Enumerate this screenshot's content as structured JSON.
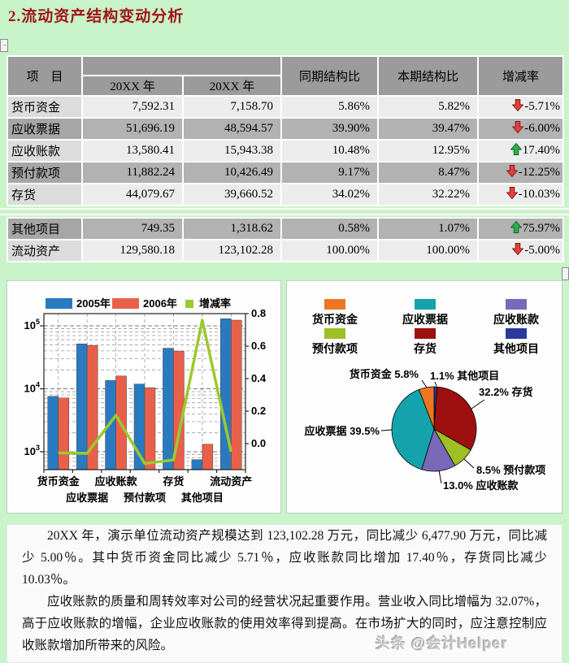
{
  "page": {
    "title": "2.流动资产结构变动分析",
    "background": "#c9f3c9"
  },
  "table": {
    "headers": {
      "item": "项　目",
      "year_prev": "20XX 年",
      "year_curr": "20XX 年",
      "prior_ratio": "同期结构比",
      "current_ratio": "本期结构比",
      "change_rate": "增减率"
    },
    "main_rows": 5,
    "rows": [
      {
        "name": "货币资金",
        "prev": "7,592.31",
        "curr": "7,158.70",
        "prior_pct": "5.86%",
        "curr_pct": "5.82%",
        "change": "-5.71%",
        "trend": "down"
      },
      {
        "name": "应收票据",
        "prev": "51,696.19",
        "curr": "48,594.57",
        "prior_pct": "39.90%",
        "curr_pct": "39.47%",
        "change": "-6.00%",
        "trend": "down"
      },
      {
        "name": "应收账款",
        "prev": "13,580.41",
        "curr": "15,943.38",
        "prior_pct": "10.48%",
        "curr_pct": "12.95%",
        "change": "17.40%",
        "trend": "up"
      },
      {
        "name": "预付款项",
        "prev": "11,882.24",
        "curr": "10,426.49",
        "prior_pct": "9.17%",
        "curr_pct": "8.47%",
        "change": "-12.25%",
        "trend": "down"
      },
      {
        "name": "存货",
        "prev": "44,079.67",
        "curr": "39,660.52",
        "prior_pct": "34.02%",
        "curr_pct": "32.22%",
        "change": "-10.03%",
        "trend": "down"
      },
      {
        "name": "其他项目",
        "prev": "749.35",
        "curr": "1,318.62",
        "prior_pct": "0.58%",
        "curr_pct": "1.07%",
        "change": "75.97%",
        "trend": "up"
      },
      {
        "name": "流动资产",
        "prev": "129,580.18",
        "curr": "123,102.28",
        "prior_pct": "100.00%",
        "curr_pct": "100.00%",
        "change": "-5.00%",
        "trend": "down"
      }
    ]
  },
  "chart_data": [
    {
      "type": "bar",
      "categories": [
        "货币资金",
        "应收票据",
        "应收账款",
        "预付款项",
        "存货",
        "其他项目",
        "流动资产"
      ],
      "series": [
        {
          "name": "2005年",
          "type": "bar",
          "color": "#2a7abf",
          "values": [
            7592.31,
            51696.19,
            13580.41,
            11882.24,
            44079.67,
            749.35,
            129580.18
          ]
        },
        {
          "name": "2006年",
          "type": "bar",
          "color": "#e9604a",
          "values": [
            7158.7,
            48594.57,
            15943.38,
            10426.49,
            39660.52,
            1318.62,
            123102.28
          ]
        },
        {
          "name": "增减率",
          "type": "line",
          "color": "#9cc92e",
          "values": [
            -0.0571,
            -0.06,
            0.174,
            -0.1225,
            -0.1003,
            0.7597,
            -0.05
          ]
        }
      ],
      "y_left": {
        "scale": "log",
        "ticks": [
          "10^3",
          "10^4",
          "10^5"
        ]
      },
      "y_right": {
        "ticks": [
          "0.8",
          "0.6",
          "0.4",
          "0.2",
          "0.0"
        ],
        "min": -0.16,
        "max": 0.8
      },
      "grid": "dashed",
      "legend_position": "top"
    },
    {
      "type": "pie",
      "start_angle_deg": -90,
      "direction": "clockwise",
      "slices": [
        {
          "name": "其他项目",
          "value": 1.1,
          "color": "#2a3a9c",
          "label": "1.1% 其他项目"
        },
        {
          "name": "存货",
          "value": 32.2,
          "color": "#9e1010",
          "label": "32.2% 存货"
        },
        {
          "name": "预付款项",
          "value": 8.5,
          "color": "#9dc024",
          "label": "8.5% 预付款项"
        },
        {
          "name": "应收账款",
          "value": 13.0,
          "color": "#7a68b8",
          "label": "13.0% 应收账款"
        },
        {
          "name": "应收票据",
          "value": 39.5,
          "color": "#14a3ac",
          "label": "应收票据 39.5%"
        },
        {
          "name": "货币资金",
          "value": 5.8,
          "color": "#ee7621",
          "label": "货币资金 5.8%"
        }
      ],
      "legend": [
        "货币资金",
        "应收票据",
        "应收账款",
        "预付款项",
        "存货",
        "其他项目"
      ]
    }
  ],
  "analysis": {
    "paragraphs": [
      "20XX 年，演示单位流动资产规模达到 123,102.28 万元，同比减少 6,477.90 万元，同比减少 5.00％。其中货币资金同比减少 5.71％，应收账款同比增加 17.40％，存货同比减少 10.03％。",
      "应收账款的质量和周转效率对公司的经营状况起重要作用。营业收入同比增幅为 32.07%，高于应收账款的增幅，企业应收账款的使用效率得到提高。在市场扩大的同时，应注意控制应收账款增加所带来的风险。"
    ]
  },
  "watermark": "头条 @会计Helper",
  "colors": {
    "trend_up": "#2fae4c",
    "trend_up_edge": "#135c26",
    "trend_down": "#e2403d",
    "trend_down_edge": "#7d1616",
    "header_bg": "#9b9b9b",
    "row_light": "#ececec",
    "row_dark": "#b2b2b2",
    "title": "#a01518",
    "page_bg": "#c9f3c9"
  }
}
